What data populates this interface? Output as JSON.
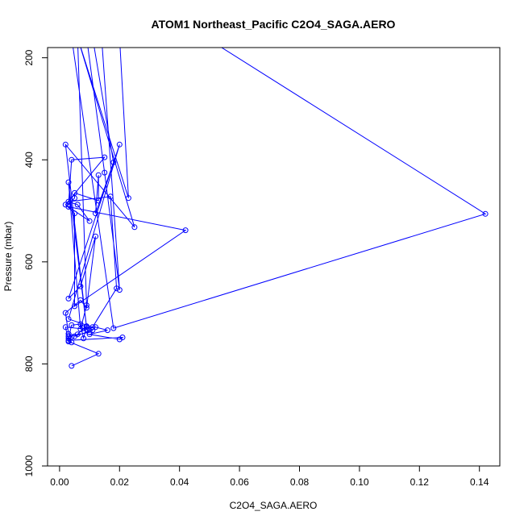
{
  "chart_data": {
    "type": "line",
    "title": "ATOM1 Northeast_Pacific C2O4_SAGA.AERO",
    "xlabel": "C2O4_SAGA.AERO",
    "ylabel": "Pressure (mbar)",
    "xlim": [
      -0.004,
      0.1468
    ],
    "ylim": [
      1000,
      180
    ],
    "x_ticks": [
      0.0,
      0.02,
      0.04,
      0.06,
      0.08,
      0.1,
      0.12,
      0.14
    ],
    "x_tick_labels": [
      "0.00",
      "0.02",
      "0.04",
      "0.06",
      "0.08",
      "0.10",
      "0.12",
      "0.14"
    ],
    "y_ticks": [
      200,
      400,
      600,
      800,
      1000
    ],
    "y_tick_labels": [
      "200",
      "400",
      "600",
      "800",
      "1000"
    ],
    "grid": false,
    "legend": "none",
    "color": "#0000ff",
    "series": [
      {
        "x": [
          0.004,
          0.013,
          0.003,
          0.002,
          0.009,
          0.01,
          0.003,
          0.004,
          0.003,
          0.004,
          0.007,
          0.008,
          0.009,
          0.011,
          0.005,
          0.006,
          0.008,
          0.012,
          0.016,
          0.01,
          0.02,
          0.021,
          0.003,
          0.004,
          0.003,
          0.002,
          0.007,
          0.009,
          0.012,
          0.007,
          0.003,
          0.02,
          0.003,
          0.011,
          0.019,
          0.017,
          0.003,
          0.006,
          0.01,
          0.003,
          0.042,
          0.005,
          0.005,
          0.002,
          0.015,
          0.004,
          0.003,
          0.005,
          0.005,
          0.013,
          0.013,
          0.012,
          0.018,
          0.011,
          0.013,
          0.009,
          0.014,
          0.02,
          0.015,
          0.009,
          0.02,
          0.023,
          0.006,
          0.025,
          0.002,
          0.009,
          0.003,
          0.007,
          0.009,
          0.006,
          0.012,
          0.004,
          0.018,
          0.142,
          0.05,
          0.04,
          0.03
        ],
        "y": [
          804,
          780,
          756,
          728,
          732,
          738,
          746,
          758,
          750,
          724,
          722,
          750,
          726,
          734,
          746,
          742,
          730,
          728,
          734,
          742,
          752,
          748,
          754,
          747,
          741,
          700,
          675,
          690,
          550,
          648,
          672,
          370,
          712,
          728,
          652,
          472,
          482,
          488,
          520,
          492,
          538,
          687,
          505,
          488,
          395,
          400,
          487,
          475,
          465,
          480,
          430,
          505,
          405,
          160,
          160,
          160,
          160,
          655,
          425,
          160,
          160,
          475,
          160,
          532,
          370,
          728,
          444,
          732,
          685,
          160,
          160,
          160,
          730,
          506,
          165,
          165,
          165
        ]
      }
    ]
  }
}
